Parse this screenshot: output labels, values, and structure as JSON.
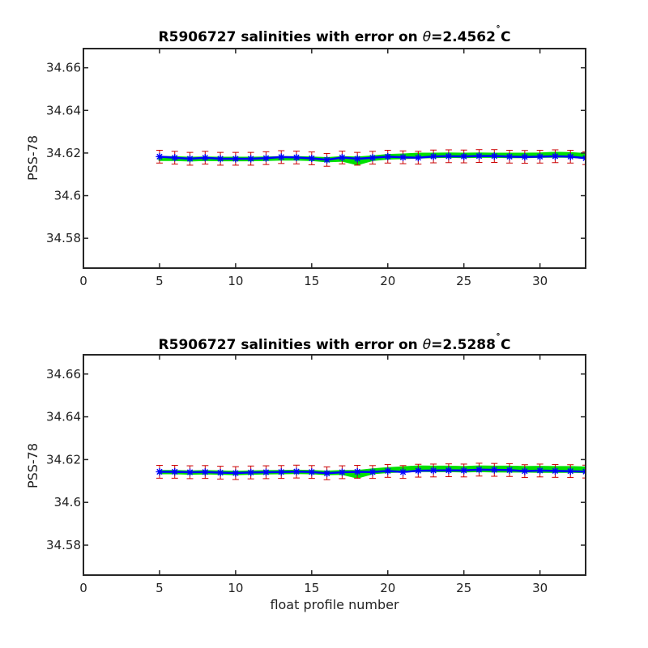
{
  "figure": {
    "xlabel": "float profile number"
  },
  "chart_data": [
    {
      "type": "line",
      "title": "R5906727 salinities with error on θ=2.4562˚C",
      "title_prefix": "R5906727 salinities with error on ",
      "title_theta": "θ",
      "title_value": "=2.4562",
      "title_degree": "˚",
      "title_unit": "C",
      "xlabel": "",
      "ylabel": "PSS-78",
      "xlim": [
        0,
        33
      ],
      "ylim": [
        34.566,
        34.669
      ],
      "xticks": [
        0,
        5,
        10,
        15,
        20,
        25,
        30
      ],
      "yticks": [
        34.58,
        34.6,
        34.62,
        34.64,
        34.66
      ],
      "ytick_labels": [
        "34.58",
        "34.6",
        "34.62",
        "34.64",
        "34.66"
      ],
      "grid": false,
      "x": [
        5,
        6,
        7,
        8,
        9,
        10,
        11,
        12,
        13,
        14,
        15,
        16,
        17,
        18,
        19,
        20,
        21,
        22,
        23,
        24,
        25,
        26,
        27,
        28,
        29,
        30,
        31,
        32,
        33
      ],
      "series": [
        {
          "role": "calibrated salinity with error",
          "color": "#0000ff",
          "marker": "asterisk",
          "values": [
            34.6183,
            34.6178,
            34.6173,
            34.6178,
            34.6173,
            34.6173,
            34.6173,
            34.6176,
            34.6181,
            34.6179,
            34.6175,
            34.6168,
            34.6179,
            34.6173,
            34.6178,
            34.6183,
            34.618,
            34.6178,
            34.6184,
            34.6185,
            34.6184,
            34.6186,
            34.6186,
            34.6183,
            34.6182,
            34.6183,
            34.6185,
            34.6183,
            34.6176
          ],
          "errors": [
            0.003,
            0.003,
            0.003,
            0.003,
            0.003,
            0.003,
            0.003,
            0.003,
            0.003,
            0.003,
            0.003,
            0.003,
            0.003,
            0.003,
            0.003,
            0.003,
            0.003,
            0.003,
            0.003,
            0.003,
            0.003,
            0.003,
            0.003,
            0.003,
            0.003,
            0.003,
            0.003,
            0.003,
            0.003
          ],
          "error_color": "#cc0000"
        },
        {
          "role": "uncorrected salinity band",
          "color": "#00e000",
          "lower": [
            34.6168,
            34.6168,
            34.6166,
            34.6168,
            34.6167,
            34.6167,
            34.6167,
            34.6168,
            34.617,
            34.617,
            34.6168,
            34.6162,
            34.6165,
            34.6148,
            34.6168,
            34.6175,
            34.6177,
            34.618,
            34.6182,
            34.6183,
            34.6182,
            34.6183,
            34.6183,
            34.6182,
            34.6182,
            34.6183,
            34.6184,
            34.6183,
            34.6178
          ],
          "upper": [
            34.6181,
            34.6179,
            34.6177,
            34.6178,
            34.6177,
            34.6177,
            34.6177,
            34.6178,
            34.618,
            34.618,
            34.6178,
            34.6175,
            34.618,
            34.6178,
            34.6183,
            34.619,
            34.6192,
            34.6196,
            34.6196,
            34.6197,
            34.6196,
            34.6197,
            34.6196,
            34.6196,
            34.6196,
            34.6197,
            34.62,
            34.6199,
            34.6194
          ]
        }
      ]
    },
    {
      "type": "line",
      "title": "R5906727 salinities with error on θ=2.5288˚C",
      "title_prefix": "R5906727 salinities with error on ",
      "title_theta": "θ",
      "title_value": "=2.5288",
      "title_degree": "˚",
      "title_unit": "C",
      "xlabel": "float profile number",
      "ylabel": "PSS-78",
      "xlim": [
        0,
        33
      ],
      "ylim": [
        34.566,
        34.669
      ],
      "xticks": [
        0,
        5,
        10,
        15,
        20,
        25,
        30
      ],
      "yticks": [
        34.58,
        34.6,
        34.62,
        34.64,
        34.66
      ],
      "ytick_labels": [
        "34.58",
        "34.6",
        "34.62",
        "34.64",
        "34.66"
      ],
      "grid": false,
      "x": [
        5,
        6,
        7,
        8,
        9,
        10,
        11,
        12,
        13,
        14,
        15,
        16,
        17,
        18,
        19,
        20,
        21,
        22,
        23,
        24,
        25,
        26,
        27,
        28,
        29,
        30,
        31,
        32,
        33
      ],
      "series": [
        {
          "role": "calibrated salinity with error",
          "color": "#0000ff",
          "marker": "asterisk",
          "values": [
            34.6143,
            34.6143,
            34.6141,
            34.6142,
            34.6139,
            34.6137,
            34.614,
            34.6141,
            34.6142,
            34.6144,
            34.6142,
            34.6136,
            34.6141,
            34.6143,
            34.6142,
            34.6147,
            34.6142,
            34.6148,
            34.6149,
            34.615,
            34.6149,
            34.6153,
            34.6152,
            34.6151,
            34.6146,
            34.6149,
            34.6147,
            34.6146,
            34.6144
          ],
          "errors": [
            0.003,
            0.003,
            0.003,
            0.003,
            0.003,
            0.003,
            0.003,
            0.003,
            0.003,
            0.003,
            0.003,
            0.003,
            0.003,
            0.003,
            0.003,
            0.003,
            0.003,
            0.003,
            0.003,
            0.003,
            0.003,
            0.003,
            0.003,
            0.003,
            0.003,
            0.003,
            0.003,
            0.003,
            0.003
          ],
          "error_color": "#cc0000"
        },
        {
          "role": "uncorrected salinity band",
          "color": "#00e000",
          "lower": [
            34.6137,
            34.6137,
            34.6135,
            34.6136,
            34.6135,
            34.6133,
            34.6135,
            34.6136,
            34.6137,
            34.6138,
            34.6137,
            34.6133,
            34.6134,
            34.6117,
            34.6137,
            34.6143,
            34.6145,
            34.6148,
            34.6147,
            34.6147,
            34.6146,
            34.6147,
            34.6146,
            34.6145,
            34.6145,
            34.6144,
            34.6144,
            34.6144,
            34.6143
          ],
          "upper": [
            34.6146,
            34.6146,
            34.6144,
            34.6145,
            34.6144,
            34.6142,
            34.6144,
            34.6145,
            34.6146,
            34.6147,
            34.6146,
            34.6143,
            34.6146,
            34.6146,
            34.6153,
            34.6159,
            34.6163,
            34.6167,
            34.6166,
            34.6166,
            34.6164,
            34.6167,
            34.6166,
            34.6166,
            34.6164,
            34.6165,
            34.6164,
            34.6164,
            34.6162
          ]
        }
      ]
    }
  ]
}
